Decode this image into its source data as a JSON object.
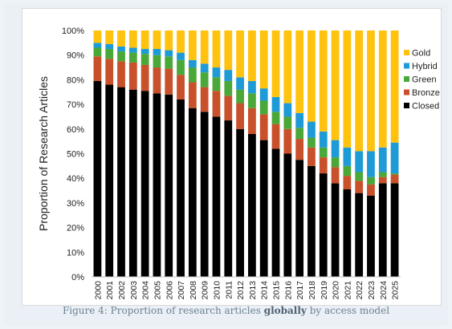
{
  "caption": {
    "prefix": "Figure 4: Proportion of research articles ",
    "bold": "globally",
    "suffix": " by access model"
  },
  "chart_data": {
    "type": "bar",
    "stacked": true,
    "title": "",
    "xlabel": "",
    "ylabel": "Proportion of Research Articles",
    "ylim": [
      0,
      100
    ],
    "y_ticks": [
      "0%",
      "10%",
      "20%",
      "30%",
      "40%",
      "50%",
      "60%",
      "70%",
      "80%",
      "90%",
      "100%"
    ],
    "grid": false,
    "legend_position": "right",
    "categories": [
      "2000",
      "2001",
      "2002",
      "2003",
      "2004",
      "2005",
      "2006",
      "2007",
      "2008",
      "2009",
      "2010",
      "2011",
      "2012",
      "2013",
      "2014",
      "2015",
      "2016",
      "2017",
      "2018",
      "2019",
      "2020",
      "2021",
      "2022",
      "2023",
      "2024",
      "2025"
    ],
    "series": [
      {
        "name": "Closed",
        "color": "#000000",
        "values": [
          79.5,
          78,
          77,
          76,
          75.5,
          74.5,
          74,
          72,
          68.5,
          67,
          65,
          63.5,
          60,
          58,
          55.5,
          52,
          50,
          47.5,
          45,
          42,
          38,
          35.5,
          34,
          33,
          38,
          38
        ]
      },
      {
        "name": "Bronze",
        "color": "#c8502a",
        "values": [
          10,
          10.5,
          10.5,
          11,
          10.5,
          10.5,
          10.5,
          10,
          10.5,
          10,
          10.5,
          10,
          10.5,
          10.5,
          10.5,
          10,
          10,
          8.5,
          7.5,
          6.5,
          6.5,
          5.5,
          5,
          4.5,
          2.5,
          3.5
        ]
      },
      {
        "name": "Green",
        "color": "#4aa838",
        "values": [
          3.5,
          4,
          4,
          4,
          4.5,
          5,
          5,
          6,
          6,
          6,
          5.5,
          6,
          5.5,
          6,
          5.5,
          5,
          5,
          4.5,
          4,
          4,
          4,
          4,
          3.5,
          3,
          2,
          0.5
        ]
      },
      {
        "name": "Hybrid",
        "color": "#1e9ad6",
        "values": [
          2,
          2,
          2,
          2,
          2,
          2.5,
          2.5,
          3,
          3,
          3.5,
          4,
          4.5,
          5,
          5,
          5,
          6,
          5.5,
          6,
          6.5,
          6.5,
          7,
          7.5,
          8.5,
          10.5,
          10,
          12.5
        ]
      },
      {
        "name": "Gold",
        "color": "#ffc20e",
        "values": [
          5,
          5.5,
          6.5,
          7,
          7.5,
          7.5,
          8,
          9,
          12,
          13.5,
          15,
          16,
          19,
          20.5,
          23.5,
          27,
          29.5,
          33.5,
          37,
          41,
          44.5,
          47.5,
          49,
          49,
          47.5,
          45.5
        ]
      }
    ]
  }
}
